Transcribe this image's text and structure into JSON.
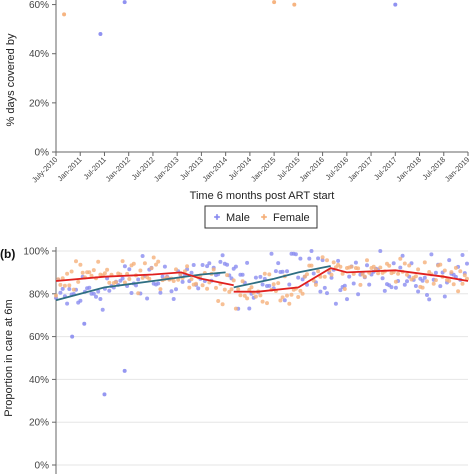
{
  "chart_data": [
    {
      "type": "scatter",
      "ylabel": "% days covered by",
      "xlabel": "Time 6 months post ART start",
      "y_tick_labels": [
        "0%",
        "20%",
        "40%",
        "60%"
      ],
      "ylim": [
        0,
        70
      ],
      "x_tick_labels": [
        "July-2010",
        "Jan-2011",
        "Jul-2011",
        "Jan-2012",
        "Jul-2012",
        "Jan-2013",
        "Jul-2013",
        "Jan-2014",
        "Jul-2014",
        "Jan-2015",
        "Jul-2015",
        "Jan-2016",
        "Jul-2016",
        "Jan-2017",
        "Jul-2017",
        "Jan-2018",
        "Jul-2018",
        "Jan-2019"
      ],
      "xlim": [
        "2010-07",
        "2019-01"
      ],
      "grid": false,
      "legend": {
        "position": "bottom",
        "entries": [
          "Male",
          "Female"
        ]
      },
      "series": [
        {
          "name": "Male",
          "color": "#8a8cf0",
          "points": [
            [
              "2011-06",
              48
            ],
            [
              "2011-12",
              61
            ],
            [
              "2016-05",
              64
            ],
            [
              "2017-07",
              60
            ]
          ]
        },
        {
          "name": "Female",
          "color": "#f5b07a",
          "points": [
            [
              "2010-09",
              56
            ],
            [
              "2011-07",
              64
            ],
            [
              "2014-06",
              65
            ],
            [
              "2015-01",
              61
            ],
            [
              "2015-06",
              60
            ],
            [
              "2018-07",
              65
            ]
          ]
        }
      ]
    },
    {
      "type": "scatter",
      "panel_label": "(b)",
      "ylabel": "Proportion in care at 6m",
      "y_tick_labels": [
        "0%",
        "20%",
        "40%",
        "60%",
        "80%",
        "100%"
      ],
      "ylim": [
        0,
        100
      ],
      "xlim": [
        "2010-07",
        "2019-01"
      ],
      "grid": true,
      "series": [
        {
          "name": "Male",
          "color": "#8a8cf0"
        },
        {
          "name": "Female",
          "color": "#f5b07a"
        }
      ],
      "trend_lines": [
        {
          "series": "Male",
          "color": "#2e6f82",
          "points": [
            [
              "2010-07",
              77
            ],
            [
              "2011-07",
              83
            ],
            [
              "2012-07",
              86
            ],
            [
              "2013-07",
              89
            ],
            [
              "2014-01",
              90
            ]
          ]
        },
        {
          "series": "Male",
          "color": "#2e6f82",
          "points": [
            [
              "2014-03",
              83
            ],
            [
              "2015-01",
              87
            ],
            [
              "2015-07",
              90
            ],
            [
              "2016-03",
              93
            ]
          ]
        },
        {
          "series": "Female",
          "color": "#e0201e",
          "points": [
            [
              "2010-07",
              86
            ],
            [
              "2011-07",
              88
            ],
            [
              "2012-07",
              89
            ],
            [
              "2013-02",
              90
            ],
            [
              "2013-07",
              87
            ],
            [
              "2014-03",
              84
            ]
          ]
        },
        {
          "series": "Female",
          "color": "#e0201e",
          "points": [
            [
              "2014-03",
              81
            ],
            [
              "2014-09",
              81
            ],
            [
              "2015-07",
              83
            ],
            [
              "2016-03",
              92
            ],
            [
              "2016-07",
              90
            ],
            [
              "2017-07",
              91
            ],
            [
              "2018-07",
              88
            ],
            [
              "2019-01",
              86
            ]
          ]
        }
      ],
      "outliers": [
        {
          "series": "Male",
          "x": "2011-07",
          "y": 33
        },
        {
          "series": "Male",
          "x": "2011-12",
          "y": 44
        },
        {
          "series": "Male",
          "x": "2010-11",
          "y": 60
        },
        {
          "series": "Male",
          "x": "2011-02",
          "y": 66
        }
      ]
    }
  ]
}
